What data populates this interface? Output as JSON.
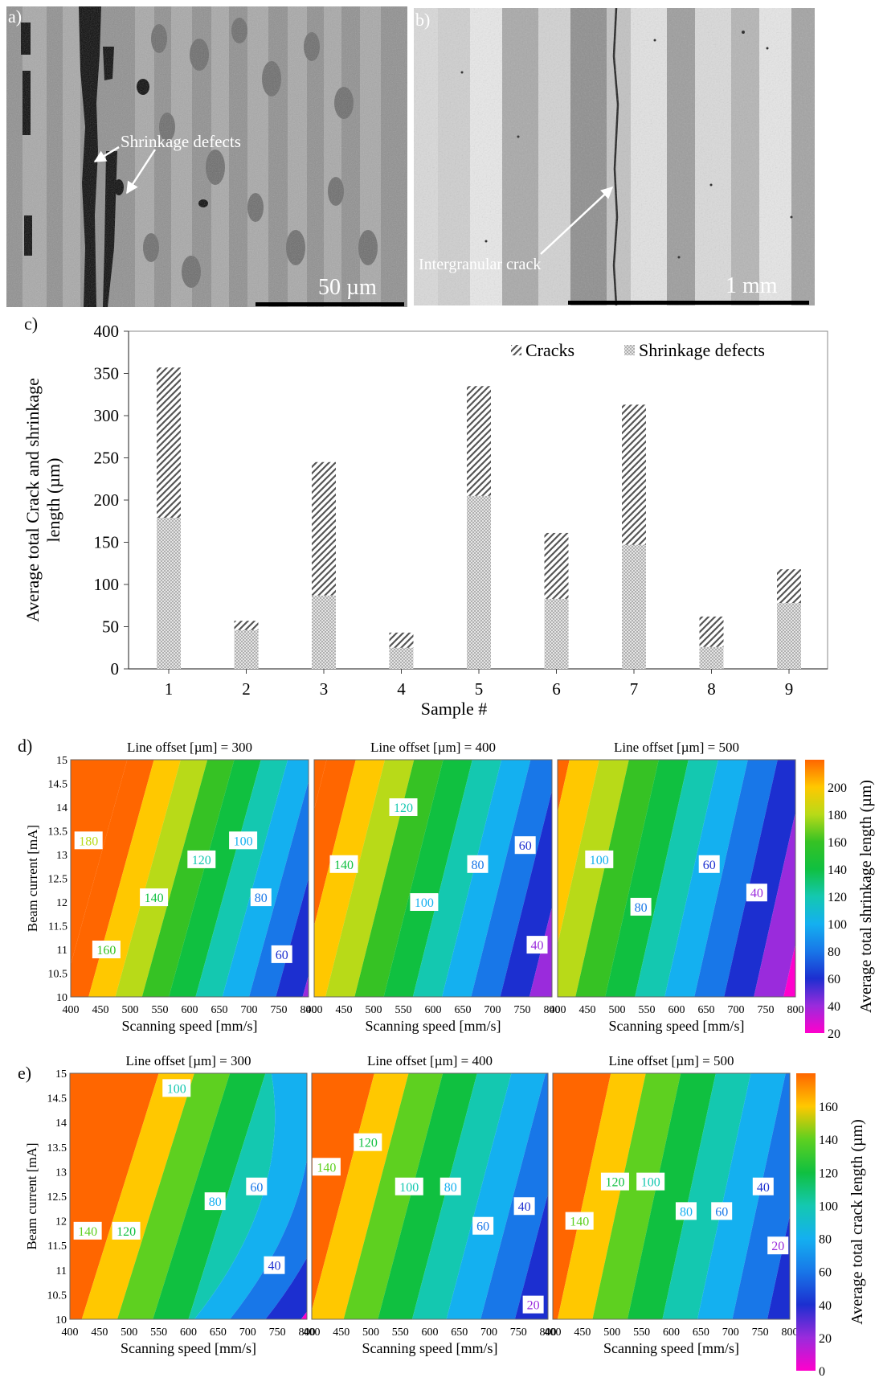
{
  "panel_labels": {
    "a": "a)",
    "b": "b)",
    "c": "c)",
    "d": "d)",
    "e": "e)"
  },
  "micrograph_a": {
    "annotation": "Shrinkage defects",
    "scale_bar": "50 µm"
  },
  "micrograph_b": {
    "annotation": "Intergranular crack",
    "scale_bar": "1 mm"
  },
  "chart_data": [
    {
      "type": "bar",
      "stacked": true,
      "categories": [
        "1",
        "2",
        "3",
        "4",
        "5",
        "6",
        "7",
        "8",
        "9"
      ],
      "series": [
        {
          "name": "Shrinkage defects",
          "values": [
            179,
            46,
            87,
            25,
            205,
            83,
            147,
            26,
            78
          ],
          "pattern": "dots"
        },
        {
          "name": "Cracks",
          "values": [
            178,
            11,
            158,
            18,
            130,
            78,
            166,
            36,
            40
          ],
          "pattern": "hatch"
        }
      ],
      "xlabel": "Sample #",
      "ylabel": "Average total Crack and shrinkage length (µm)",
      "ylabel_lines": [
        "Average total Crack and shrinkage",
        "length (µm)"
      ],
      "ylim": [
        0,
        400
      ],
      "yticks": [
        0,
        50,
        100,
        150,
        200,
        250,
        300,
        350,
        400
      ],
      "legend_position": "top-right",
      "grid": false
    },
    {
      "type": "heatmap",
      "variant": "filled-contour",
      "quantity": "Average total shrinkage length (µm)",
      "xlabel": "Scanning speed [mm/s]",
      "ylabel": "Beam current [mA]",
      "xlim": [
        400,
        800
      ],
      "ylim": [
        10,
        15
      ],
      "xticks": [
        400,
        450,
        500,
        550,
        600,
        650,
        700,
        750,
        800
      ],
      "yticks": [
        10,
        10.5,
        11,
        11.5,
        12,
        12.5,
        13,
        13.5,
        14,
        14.5,
        15
      ],
      "colorbar": {
        "label": "Average total shrinkage length (µm)",
        "range": [
          20,
          220
        ],
        "ticks": [
          20,
          40,
          60,
          80,
          100,
          120,
          140,
          160,
          180,
          200
        ]
      },
      "subplots": [
        {
          "title": "Line offset [µm] = 300",
          "contour_labels": [
            {
              "value": "180",
              "x": 430,
              "y": 13.3
            },
            {
              "value": "160",
              "x": 460,
              "y": 11.0
            },
            {
              "value": "140",
              "x": 540,
              "y": 12.1
            },
            {
              "value": "120",
              "x": 620,
              "y": 12.9
            },
            {
              "value": "100",
              "x": 690,
              "y": 13.3
            },
            {
              "value": "80",
              "x": 720,
              "y": 12.1
            },
            {
              "value": "60",
              "x": 755,
              "y": 10.9
            }
          ]
        },
        {
          "title": "Line offset [µm] = 400",
          "contour_labels": [
            {
              "value": "140",
              "x": 450,
              "y": 12.8
            },
            {
              "value": "120",
              "x": 550,
              "y": 14.0
            },
            {
              "value": "100",
              "x": 585,
              "y": 12.0
            },
            {
              "value": "80",
              "x": 675,
              "y": 12.8
            },
            {
              "value": "60",
              "x": 755,
              "y": 13.2
            },
            {
              "value": "40",
              "x": 775,
              "y": 11.1
            }
          ]
        },
        {
          "title": "Line offset [µm] = 500",
          "contour_labels": [
            {
              "value": "100",
              "x": 470,
              "y": 12.9
            },
            {
              "value": "80",
              "x": 540,
              "y": 11.9
            },
            {
              "value": "60",
              "x": 655,
              "y": 12.8
            },
            {
              "value": "40",
              "x": 735,
              "y": 12.2
            }
          ]
        }
      ]
    },
    {
      "type": "heatmap",
      "variant": "filled-contour",
      "quantity": "Average total crack length (µm)",
      "xlabel": "Scanning speed [mm/s]",
      "ylabel": "Beam current [mA]",
      "xlim": [
        400,
        800
      ],
      "ylim": [
        10,
        15
      ],
      "xticks": [
        400,
        450,
        500,
        550,
        600,
        650,
        700,
        750,
        800
      ],
      "yticks": [
        10,
        10.5,
        11,
        11.5,
        12,
        12.5,
        13,
        13.5,
        14,
        14.5,
        15
      ],
      "colorbar": {
        "label": "Average total crack length (µm)",
        "range": [
          0,
          180
        ],
        "ticks": [
          0,
          20,
          40,
          60,
          80,
          100,
          120,
          140,
          160
        ]
      },
      "subplots": [
        {
          "title": "Line offset [µm] = 300",
          "contour_labels": [
            {
              "value": "100",
              "x": 580,
              "y": 14.7
            },
            {
              "value": "140",
              "x": 430,
              "y": 11.8
            },
            {
              "value": "120",
              "x": 495,
              "y": 11.8
            },
            {
              "value": "80",
              "x": 645,
              "y": 12.4
            },
            {
              "value": "60",
              "x": 715,
              "y": 12.7
            },
            {
              "value": "40",
              "x": 745,
              "y": 11.1
            }
          ]
        },
        {
          "title": "Line offset [µm] = 400",
          "contour_labels": [
            {
              "value": "140",
              "x": 425,
              "y": 13.1
            },
            {
              "value": "120",
              "x": 495,
              "y": 13.6
            },
            {
              "value": "100",
              "x": 565,
              "y": 12.7
            },
            {
              "value": "80",
              "x": 635,
              "y": 12.7
            },
            {
              "value": "60",
              "x": 690,
              "y": 11.9
            },
            {
              "value": "40",
              "x": 760,
              "y": 12.3
            },
            {
              "value": "20",
              "x": 775,
              "y": 10.3
            }
          ]
        },
        {
          "title": "Line offset [µm] = 500",
          "contour_labels": [
            {
              "value": "140",
              "x": 445,
              "y": 12.0
            },
            {
              "value": "120",
              "x": 505,
              "y": 12.8
            },
            {
              "value": "100",
              "x": 565,
              "y": 12.8
            },
            {
              "value": "80",
              "x": 625,
              "y": 12.2
            },
            {
              "value": "60",
              "x": 685,
              "y": 12.2
            },
            {
              "value": "40",
              "x": 755,
              "y": 12.7
            },
            {
              "value": "20",
              "x": 780,
              "y": 11.5
            }
          ]
        }
      ]
    }
  ]
}
